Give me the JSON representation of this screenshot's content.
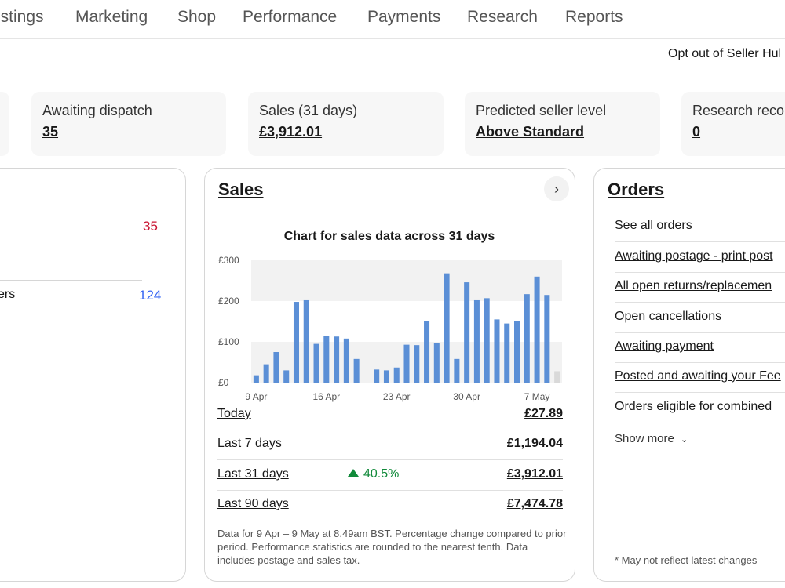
{
  "nav": {
    "items": [
      "istings",
      "Marketing",
      "Shop",
      "Performance",
      "Payments",
      "Research",
      "Reports"
    ]
  },
  "opt_out": "Opt out of Seller Hul",
  "tiles": [
    {
      "label": "Awaiting dispatch",
      "value": "35"
    },
    {
      "label": "Sales (31 days)",
      "value": "£3,912.01"
    },
    {
      "label": "Predicted seller level",
      "value": "Above Standard"
    },
    {
      "label": "Research reco",
      "value": "0"
    }
  ],
  "left_card": {
    "count_top": "35",
    "count_bottom": "124",
    "link_fragment": "ers"
  },
  "sales": {
    "title": "Sales",
    "chart_title": "Chart for sales data across 31 days",
    "rows": [
      {
        "label": "Today",
        "change": "",
        "value": "£27.89"
      },
      {
        "label": "Last 7 days",
        "change": "",
        "value": "£1,194.04"
      },
      {
        "label": "Last 31 days",
        "change": "40.5%",
        "value": "£3,912.01"
      },
      {
        "label": "Last 90 days",
        "change": "",
        "value": "£7,474.78"
      }
    ],
    "note": "Data for 9 Apr – 9 May at 8.49am BST. Percentage change compared to prior period. Performance statistics are rounded to the nearest tenth. Data includes postage and sales tax."
  },
  "orders": {
    "title": "Orders",
    "links": [
      "See all orders",
      "Awaiting postage - print post",
      "All open returns/replacemen",
      "Open cancellations",
      "Awaiting payment",
      "Posted and awaiting your Fee",
      "Orders eligible for combined"
    ],
    "show_more": "Show more",
    "note": "* May not reflect latest changes"
  },
  "colors": {
    "bar": "#5b8fd6",
    "bar_today": "#d9d9d9",
    "increase": "#118a3a",
    "alert": "#c8102e",
    "count_blue": "#3665f3"
  },
  "chart_data": {
    "type": "bar",
    "title": "Chart for sales data across 31 days",
    "categories": [
      "9 Apr",
      "10 Apr",
      "11 Apr",
      "12 Apr",
      "13 Apr",
      "14 Apr",
      "15 Apr",
      "16 Apr",
      "17 Apr",
      "18 Apr",
      "19 Apr",
      "20 Apr",
      "21 Apr",
      "22 Apr",
      "23 Apr",
      "24 Apr",
      "25 Apr",
      "26 Apr",
      "27 Apr",
      "28 Apr",
      "29 Apr",
      "30 Apr",
      "1 May",
      "2 May",
      "3 May",
      "4 May",
      "5 May",
      "6 May",
      "7 May",
      "8 May",
      "9 May"
    ],
    "tick_labels": [
      "9 Apr",
      "16 Apr",
      "23 Apr",
      "30 Apr",
      "7 May"
    ],
    "values": [
      18,
      45,
      75,
      30,
      198,
      202,
      95,
      115,
      113,
      108,
      58,
      0,
      32,
      30,
      37,
      93,
      92,
      150,
      97,
      268,
      58,
      246,
      202,
      207,
      155,
      145,
      150,
      217,
      260,
      215,
      28
    ],
    "yticks": [
      "£0",
      "£100",
      "£200",
      "£300"
    ],
    "ylim": [
      0,
      300
    ],
    "grid": "alternating bands"
  }
}
